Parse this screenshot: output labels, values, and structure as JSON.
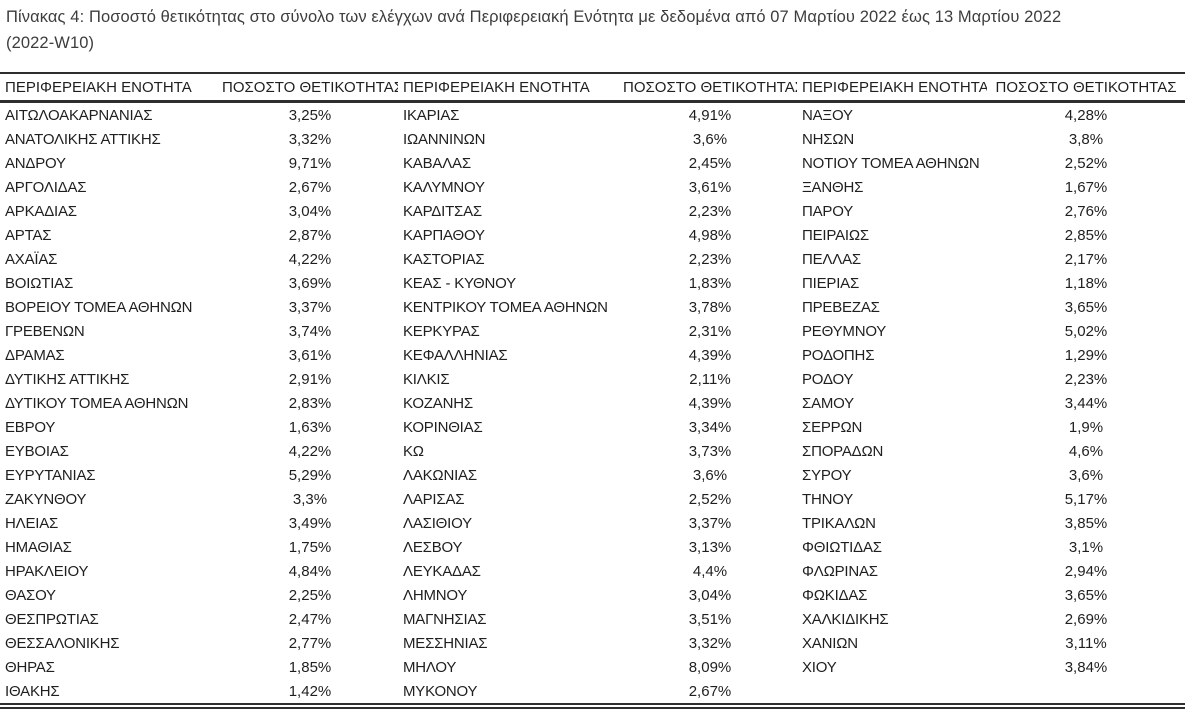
{
  "caption": {
    "line1": "Πίνακας 4: Ποσοστό θετικότητας στο σύνολο των ελέγχων ανά Περιφερειακή Ενότητα με δεδομένα από 07 Μαρτίου 2022 έως 13 Μαρτίου 2022",
    "line2": "(2022-W10)"
  },
  "colors": {
    "background": "#ffffff",
    "caption_text": "#3d3d3d",
    "table_text": "#1f1f1f",
    "border": "#2e2e2e"
  },
  "table": {
    "column_headers": [
      "ΠΕΡΙΦΕΡΕΙΑΚΗ ΕΝΟΤΗΤΑ",
      "ΠΟΣΟΣΤΟ ΘΕΤΙΚΟΤΗΤΑΣ",
      "ΠΕΡΙΦΕΡΕΙΑΚΗ ΕΝΟΤΗΤΑ",
      "ΠΟΣΟΣΤΟ ΘΕΤΙΚΟΤΗΤΑΣ",
      "ΠΕΡΙΦΕΡΕΙΑΚΗ ΕΝΟΤΗΤΑ",
      "ΠΟΣΟΣΤΟ ΘΕΤΙΚΟΤΗΤΑΣ"
    ],
    "rows": [
      [
        "ΑΙΤΩΛΟΑΚΑΡΝΑΝΙΑΣ",
        "3,25%",
        "ΙΚΑΡΙΑΣ",
        "4,91%",
        "ΝΑΞΟΥ",
        "4,28%"
      ],
      [
        "ΑΝΑΤΟΛΙΚΗΣ ΑΤΤΙΚΗΣ",
        "3,32%",
        "ΙΩΑΝΝΙΝΩΝ",
        "3,6%",
        "ΝΗΣΩΝ",
        "3,8%"
      ],
      [
        "ΑΝΔΡΟΥ",
        "9,71%",
        "ΚΑΒΑΛΑΣ",
        "2,45%",
        "ΝΟΤΙΟΥ ΤΟΜΕΑ ΑΘΗΝΩΝ",
        "2,52%"
      ],
      [
        "ΑΡΓΟΛΙΔΑΣ",
        "2,67%",
        "ΚΑΛΥΜΝΟΥ",
        "3,61%",
        "ΞΑΝΘΗΣ",
        "1,67%"
      ],
      [
        "ΑΡΚΑΔΙΑΣ",
        "3,04%",
        "ΚΑΡΔΙΤΣΑΣ",
        "2,23%",
        "ΠΑΡΟΥ",
        "2,76%"
      ],
      [
        "ΑΡΤΑΣ",
        "2,87%",
        "ΚΑΡΠΑΘΟΥ",
        "4,98%",
        "ΠΕΙΡΑΙΩΣ",
        "2,85%"
      ],
      [
        "ΑΧΑΪΑΣ",
        "4,22%",
        "ΚΑΣΤΟΡΙΑΣ",
        "2,23%",
        "ΠΕΛΛΑΣ",
        "2,17%"
      ],
      [
        "ΒΟΙΩΤΙΑΣ",
        "3,69%",
        "ΚΕΑΣ - ΚΥΘΝΟΥ",
        "1,83%",
        "ΠΙΕΡΙΑΣ",
        "1,18%"
      ],
      [
        "ΒΟΡΕΙΟΥ ΤΟΜΕΑ ΑΘΗΝΩΝ",
        "3,37%",
        "ΚΕΝΤΡΙΚΟΥ ΤΟΜΕΑ ΑΘΗΝΩΝ",
        "3,78%",
        "ΠΡΕΒΕΖΑΣ",
        "3,65%"
      ],
      [
        "ΓΡΕΒΕΝΩΝ",
        "3,74%",
        "ΚΕΡΚΥΡΑΣ",
        "2,31%",
        "ΡΕΘΥΜΝΟΥ",
        "5,02%"
      ],
      [
        "ΔΡΑΜΑΣ",
        "3,61%",
        "ΚΕΦΑΛΛΗΝΙΑΣ",
        "4,39%",
        "ΡΟΔΟΠΗΣ",
        "1,29%"
      ],
      [
        "ΔΥΤΙΚΗΣ ΑΤΤΙΚΗΣ",
        "2,91%",
        "ΚΙΛΚΙΣ",
        "2,11%",
        "ΡΟΔΟΥ",
        "2,23%"
      ],
      [
        "ΔΥΤΙΚΟΥ ΤΟΜΕΑ ΑΘΗΝΩΝ",
        "2,83%",
        "ΚΟΖΑΝΗΣ",
        "4,39%",
        "ΣΑΜΟΥ",
        "3,44%"
      ],
      [
        "ΕΒΡΟΥ",
        "1,63%",
        "ΚΟΡΙΝΘΙΑΣ",
        "3,34%",
        "ΣΕΡΡΩΝ",
        "1,9%"
      ],
      [
        "ΕΥΒΟΙΑΣ",
        "4,22%",
        "ΚΩ",
        "3,73%",
        "ΣΠΟΡΑΔΩΝ",
        "4,6%"
      ],
      [
        "ΕΥΡΥΤΑΝΙΑΣ",
        "5,29%",
        "ΛΑΚΩΝΙΑΣ",
        "3,6%",
        "ΣΥΡΟΥ",
        "3,6%"
      ],
      [
        "ΖΑΚΥΝΘΟΥ",
        "3,3%",
        "ΛΑΡΙΣΑΣ",
        "2,52%",
        "ΤΗΝΟΥ",
        "5,17%"
      ],
      [
        "ΗΛΕΙΑΣ",
        "3,49%",
        "ΛΑΣΙΘΙΟΥ",
        "3,37%",
        "ΤΡΙΚΑΛΩΝ",
        "3,85%"
      ],
      [
        "ΗΜΑΘΙΑΣ",
        "1,75%",
        "ΛΕΣΒΟΥ",
        "3,13%",
        "ΦΘΙΩΤΙΔΑΣ",
        "3,1%"
      ],
      [
        "ΗΡΑΚΛΕΙΟΥ",
        "4,84%",
        "ΛΕΥΚΑΔΑΣ",
        "4,4%",
        "ΦΛΩΡΙΝΑΣ",
        "2,94%"
      ],
      [
        "ΘΑΣΟΥ",
        "2,25%",
        "ΛΗΜΝΟΥ",
        "3,04%",
        "ΦΩΚΙΔΑΣ",
        "3,65%"
      ],
      [
        "ΘΕΣΠΡΩΤΙΑΣ",
        "2,47%",
        "ΜΑΓΝΗΣΙΑΣ",
        "3,51%",
        "ΧΑΛΚΙΔΙΚΗΣ",
        "2,69%"
      ],
      [
        "ΘΕΣΣΑΛΟΝΙΚΗΣ",
        "2,77%",
        "ΜΕΣΣΗΝΙΑΣ",
        "3,32%",
        "ΧΑΝΙΩΝ",
        "3,11%"
      ],
      [
        "ΘΗΡΑΣ",
        "1,85%",
        "ΜΗΛΟΥ",
        "8,09%",
        "ΧΙΟΥ",
        "3,84%"
      ],
      [
        "ΙΘΑΚΗΣ",
        "1,42%",
        "ΜΥΚΟΝΟΥ",
        "2,67%",
        "",
        ""
      ]
    ]
  }
}
